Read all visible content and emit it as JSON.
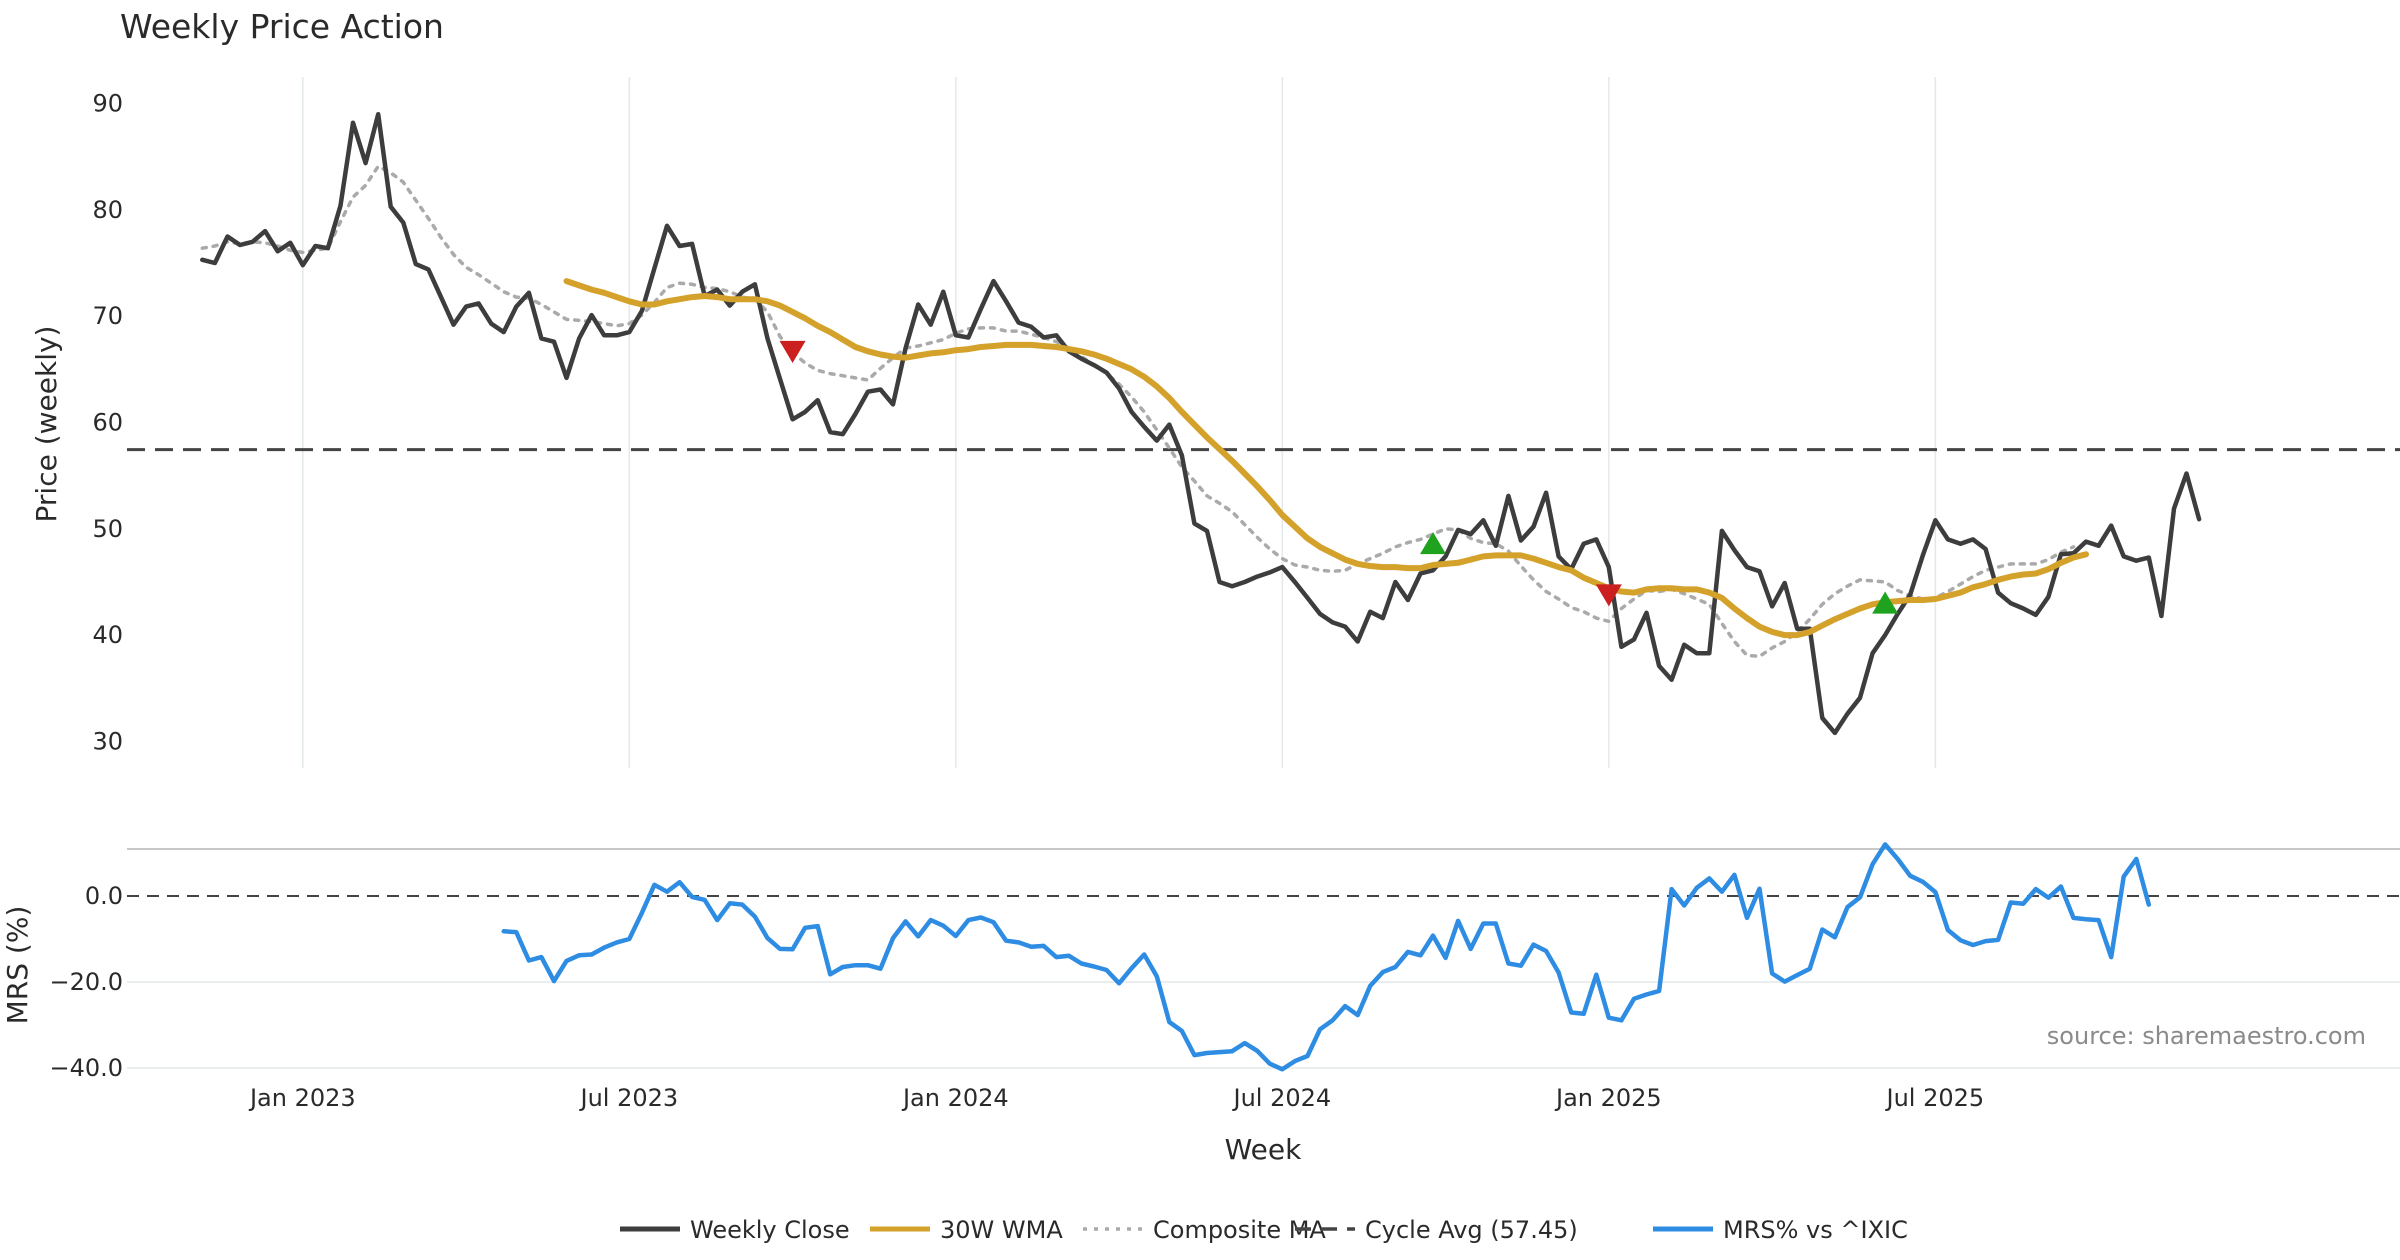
{
  "colors": {
    "close": "#3d3d3d",
    "wma": "#d4a12a",
    "composite": "#aaaaaa",
    "cycle": "#444444",
    "mrs": "#2e8de3",
    "sell": "#cc1f1f",
    "buy": "#1fa31f",
    "grid": "#e3e8ea"
  },
  "chart_data": {
    "type": "line",
    "title": "Weekly Price Action",
    "xlabel": "Week",
    "source": "source: sharemaestro.com",
    "x_range": [
      -14,
      167
    ],
    "x_ticks": [
      {
        "week": 0,
        "label": "Jan 2023"
      },
      {
        "week": 26,
        "label": "Jul 2023"
      },
      {
        "week": 52,
        "label": "Jan 2024"
      },
      {
        "week": 78,
        "label": "Jul 2024"
      },
      {
        "week": 104,
        "label": "Jan 2025"
      },
      {
        "week": 130,
        "label": "Jul 2025"
      }
    ],
    "price_panel": {
      "ylabel": "Price (weekly)",
      "ylim": [
        27.5,
        92.5
      ],
      "y_ticks": [
        30,
        40,
        50,
        60,
        70,
        80,
        90
      ],
      "cycle_avg": 57.45,
      "start_week": -8,
      "series": [
        {
          "name": "Weekly Close",
          "values": [
            75.3,
            75.0,
            77.5,
            76.7,
            77.0,
            78.0,
            76.1,
            76.9,
            74.8,
            76.6,
            76.4,
            80.4,
            88.2,
            84.4,
            89.0,
            80.3,
            78.8,
            74.9,
            74.4,
            71.8,
            69.2,
            70.9,
            71.2,
            69.3,
            68.5,
            70.9,
            72.2,
            67.9,
            67.6,
            64.2,
            67.9,
            70.1,
            68.2,
            68.2,
            68.5,
            70.5,
            74.5,
            78.5,
            76.6,
            76.8,
            71.9,
            72.5,
            71.0,
            72.3,
            73.0,
            67.9,
            64.1,
            60.3,
            61.0,
            62.1,
            59.1,
            58.9,
            60.8,
            62.9,
            63.1,
            61.7,
            67.0,
            71.1,
            69.2,
            72.3,
            68.2,
            68.0,
            70.7,
            73.3,
            71.4,
            69.4,
            69.0,
            68.0,
            68.2,
            66.7,
            66.0,
            65.4,
            64.7,
            63.2,
            61.0,
            59.6,
            58.3,
            59.8,
            56.9,
            50.5,
            49.8,
            45.0,
            44.6,
            45.0,
            45.5,
            45.9,
            46.4,
            45.0,
            43.5,
            42.0,
            41.2,
            40.8,
            39.4,
            42.2,
            41.6,
            45.0,
            43.3,
            45.8,
            46.1,
            47.4,
            49.9,
            49.5,
            50.8,
            48.4,
            53.1,
            48.9,
            50.2,
            53.4,
            47.4,
            46.2,
            48.6,
            49.0,
            46.4,
            38.9,
            39.6,
            42.1,
            37.1,
            35.8,
            39.1,
            38.3,
            38.3,
            49.8,
            48.0,
            46.4,
            46.0,
            42.7,
            44.9,
            40.6,
            40.6,
            32.2,
            30.8,
            32.6,
            34.1,
            38.3,
            40.0,
            42.0,
            43.8,
            47.5,
            50.8,
            49.0,
            48.6,
            49.0,
            48.1,
            44.0,
            43.0,
            42.5,
            41.9,
            43.6,
            47.6,
            47.7,
            48.8,
            48.4,
            50.3,
            47.4,
            47.0,
            47.3,
            41.8,
            51.9,
            55.2,
            50.9
          ]
        },
        {
          "name": "30W WMA",
          "start_offset": 29,
          "values": [
            73.3,
            72.9,
            72.5,
            72.2,
            71.8,
            71.4,
            71.1,
            71.1,
            71.4,
            71.6,
            71.8,
            71.9,
            71.8,
            71.6,
            71.6,
            71.6,
            71.4,
            71.0,
            70.4,
            69.8,
            69.1,
            68.5,
            67.8,
            67.1,
            66.7,
            66.4,
            66.2,
            66.1,
            66.3,
            66.5,
            66.6,
            66.8,
            66.9,
            67.1,
            67.2,
            67.3,
            67.3,
            67.3,
            67.2,
            67.1,
            66.9,
            66.7,
            66.4,
            66.0,
            65.5,
            65.0,
            64.3,
            63.4,
            62.3,
            61.0,
            59.8,
            58.6,
            57.5,
            56.4,
            55.2,
            54.0,
            52.7,
            51.3,
            50.2,
            49.1,
            48.3,
            47.7,
            47.1,
            46.7,
            46.5,
            46.4,
            46.4,
            46.3,
            46.3,
            46.6,
            46.7,
            46.8,
            47.1,
            47.4,
            47.5,
            47.5,
            47.5,
            47.2,
            46.8,
            46.4,
            46.1,
            45.4,
            44.9,
            44.4,
            44.1,
            44.0,
            44.3,
            44.4,
            44.4,
            44.3,
            44.3,
            44.0,
            43.5,
            42.5,
            41.6,
            40.8,
            40.3,
            40.0,
            40.0,
            40.3,
            40.9,
            41.5,
            42.0,
            42.5,
            42.9,
            43.1,
            43.2,
            43.3,
            43.3,
            43.4,
            43.7,
            44.0,
            44.5,
            44.8,
            45.2,
            45.5,
            45.7,
            45.8,
            46.2,
            46.8,
            47.3,
            47.6
          ]
        },
        {
          "name": "Composite MA",
          "values": [
            76.4,
            76.6,
            77.0,
            76.8,
            77.0,
            76.9,
            76.6,
            76.2,
            76.0,
            76.2,
            76.4,
            78.9,
            81.2,
            82.3,
            84.1,
            83.5,
            82.6,
            80.9,
            79.2,
            77.4,
            75.8,
            74.6,
            73.9,
            73.1,
            72.3,
            71.8,
            71.7,
            71.1,
            70.4,
            69.7,
            69.6,
            69.5,
            69.3,
            69.1,
            69.3,
            70.1,
            71.3,
            72.7,
            73.1,
            73.0,
            72.7,
            72.6,
            72.3,
            71.8,
            71.6,
            70.4,
            68.1,
            66.6,
            65.6,
            64.9,
            64.6,
            64.4,
            64.2,
            64.0,
            65.1,
            66.1,
            67.0,
            67.2,
            67.5,
            67.8,
            68.4,
            68.8,
            68.9,
            68.9,
            68.6,
            68.6,
            68.3,
            68.0,
            67.6,
            67.0,
            66.2,
            65.4,
            64.6,
            63.6,
            62.4,
            61.0,
            59.3,
            57.6,
            55.8,
            54.5,
            53.1,
            52.4,
            51.6,
            50.4,
            49.2,
            48.1,
            47.2,
            46.6,
            46.4,
            46.1,
            46.0,
            46.1,
            46.7,
            47.2,
            47.7,
            48.3,
            48.7,
            49.0,
            49.5,
            50.0,
            49.9,
            49.1,
            48.7,
            48.6,
            47.9,
            46.5,
            45.2,
            44.1,
            43.4,
            42.6,
            42.2,
            41.6,
            41.3,
            42.5,
            43.4,
            44.2,
            44.1,
            44.3,
            43.9,
            43.4,
            42.9,
            41.1,
            39.4,
            38.1,
            38.0,
            38.8,
            39.4,
            40.3,
            41.5,
            42.9,
            43.9,
            44.6,
            45.2,
            45.1,
            45.0,
            44.2,
            43.7,
            43.4,
            43.5,
            44.1,
            44.8,
            45.5,
            46.1,
            46.4,
            46.7,
            46.7,
            46.7,
            47.1,
            47.8,
            48.3
          ]
        }
      ],
      "markers": [
        {
          "type": "sell",
          "week": 39,
          "value": 66.7
        },
        {
          "type": "buy",
          "week": 90,
          "value": 48.6
        },
        {
          "type": "sell",
          "week": 104,
          "value": 43.8
        },
        {
          "type": "buy",
          "week": 126,
          "value": 43.0
        }
      ]
    },
    "mrs_panel": {
      "ylabel": "MRS (%)",
      "ylim": [
        -40,
        10
      ],
      "y_ticks": [
        {
          "value": 0,
          "label": "0.0"
        },
        {
          "value": -20,
          "label": "−20.0"
        },
        {
          "value": -40,
          "label": "−40.0"
        }
      ],
      "series": [
        {
          "name": "MRS% vs ^IXIC",
          "start_week": 16,
          "values": [
            -8.2,
            -8.4,
            -15.0,
            -14.2,
            -19.8,
            -15.1,
            -13.8,
            -13.6,
            -12.0,
            -10.8,
            -10.0,
            -3.9,
            2.6,
            1.0,
            3.2,
            -0.2,
            -0.9,
            -5.6,
            -1.7,
            -2.0,
            -4.8,
            -9.8,
            -12.3,
            -12.4,
            -7.4,
            -7.0,
            -18.2,
            -16.5,
            -16.1,
            -16.1,
            -16.9,
            -9.8,
            -5.9,
            -9.4,
            -5.6,
            -6.9,
            -9.3,
            -5.6,
            -5.0,
            -6.1,
            -10.4,
            -10.8,
            -11.8,
            -11.6,
            -14.2,
            -13.9,
            -15.7,
            -16.4,
            -17.2,
            -20.3,
            -16.8,
            -13.6,
            -18.7,
            -29.3,
            -31.4,
            -37.0,
            -36.5,
            -36.3,
            -36.1,
            -34.2,
            -36.0,
            -39.0,
            -40.3,
            -38.4,
            -37.2,
            -31.0,
            -28.9,
            -25.6,
            -27.7,
            -20.9,
            -17.7,
            -16.5,
            -13.0,
            -13.8,
            -9.2,
            -14.4,
            -5.8,
            -12.3,
            -6.4,
            -6.4,
            -15.7,
            -16.2,
            -11.3,
            -12.8,
            -17.8,
            -27.1,
            -27.4,
            -18.3,
            -28.3,
            -28.9,
            -23.9,
            -22.9,
            -22.1,
            1.6,
            -2.2,
            1.9,
            4.1,
            1.0,
            4.9,
            -5.1,
            1.7,
            -18.0,
            -19.9,
            -18.4,
            -16.9,
            -7.8,
            -9.6,
            -2.6,
            -0.3,
            7.4,
            12.0,
            8.6,
            4.7,
            3.3,
            0.9,
            -7.9,
            -10.3,
            -11.4,
            -10.5,
            -10.2,
            -1.5,
            -1.8,
            1.6,
            -0.4,
            2.2,
            -5.1,
            -5.4,
            -5.6,
            -14.2,
            4.5,
            8.6,
            -2.0
          ]
        }
      ]
    },
    "legend": [
      {
        "label": "Weekly Close",
        "key": "close",
        "style": "solid"
      },
      {
        "label": "30W WMA",
        "key": "wma",
        "style": "solid"
      },
      {
        "label": "Composite MA",
        "key": "composite",
        "style": "dotted"
      },
      {
        "label": "Cycle Avg (57.45)",
        "key": "cycle",
        "style": "dashed"
      },
      {
        "label": "MRS% vs ^IXIC",
        "key": "mrs",
        "style": "solid"
      }
    ]
  }
}
